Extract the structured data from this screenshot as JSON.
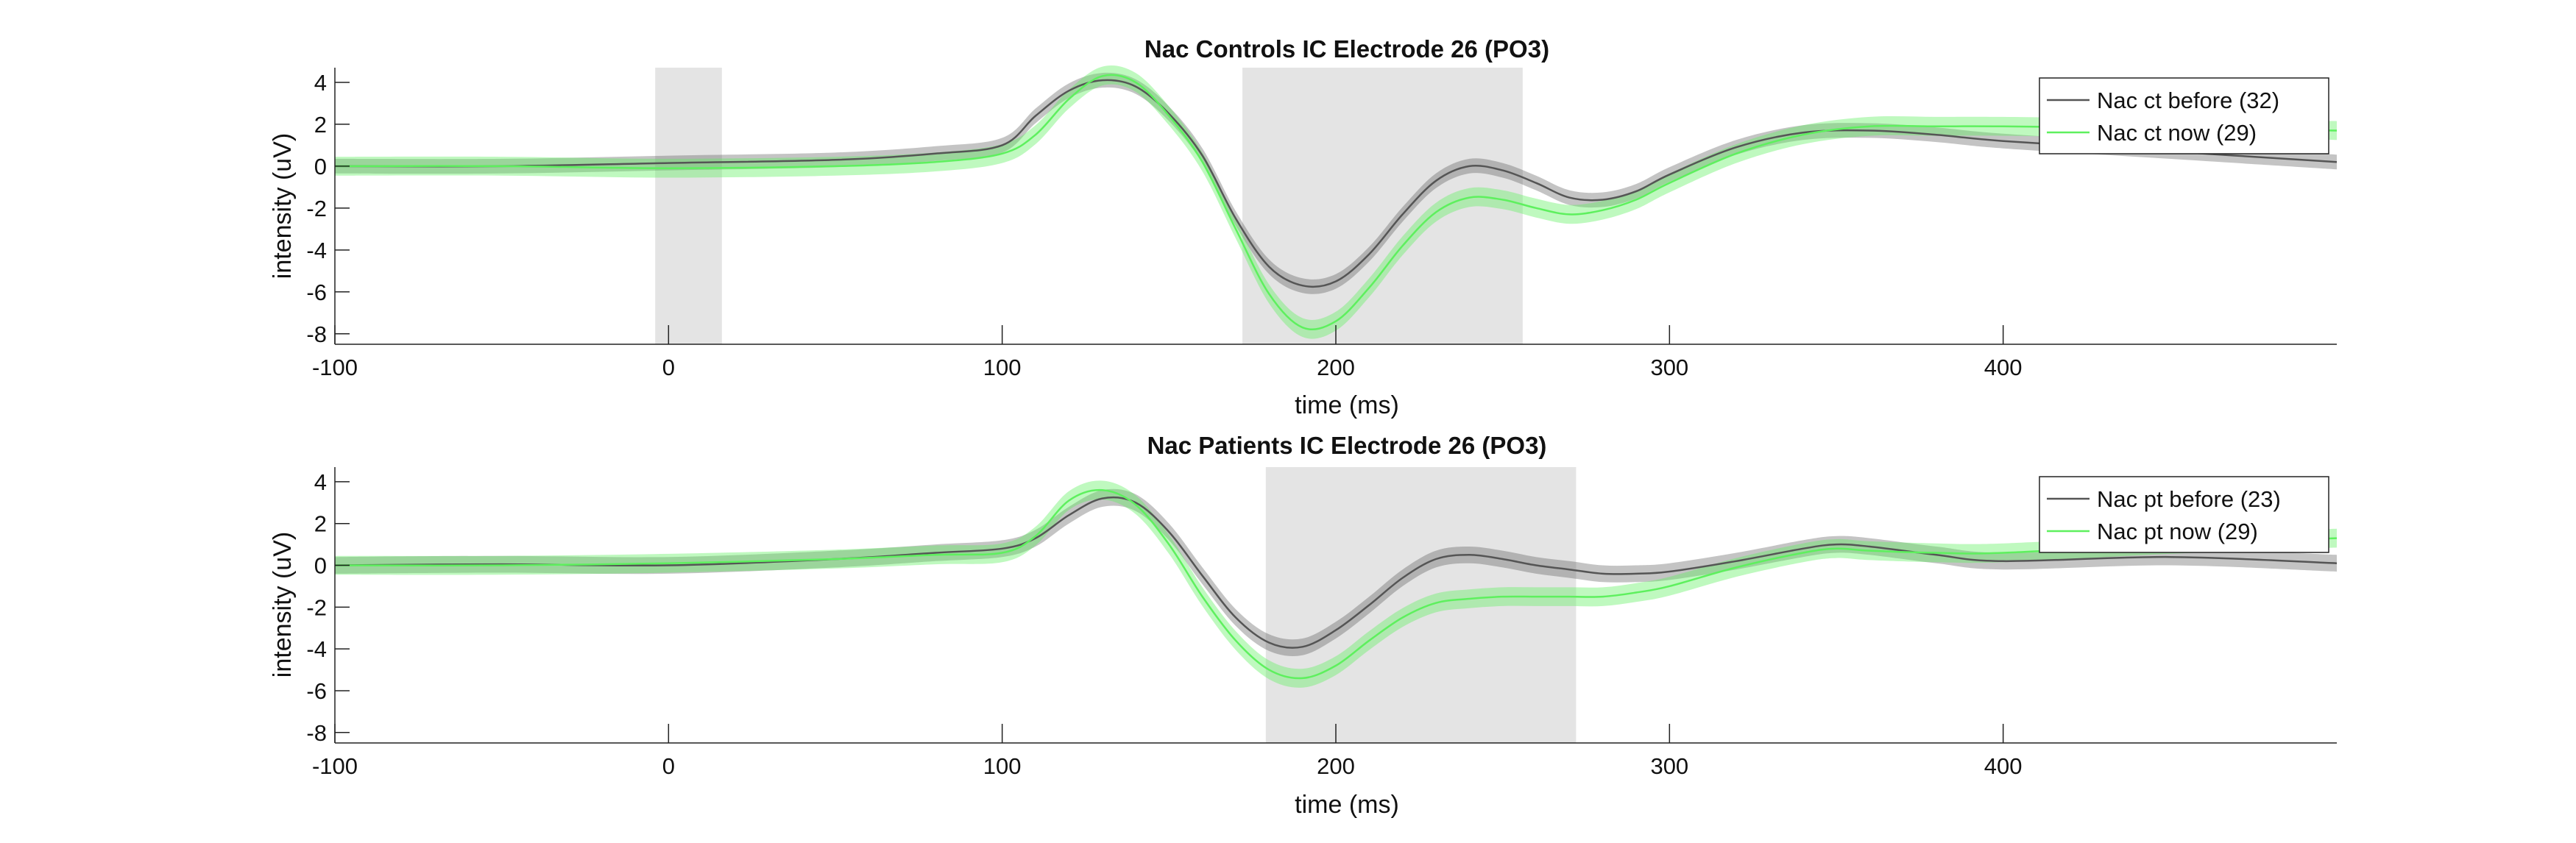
{
  "colors": {
    "before": "#555555",
    "now": "#5ef05e",
    "shade": "#e4e4e4"
  },
  "chart_data": [
    {
      "type": "line",
      "title": "Nac Controls IC Electrode 26 (PO3)",
      "xlabel": "time (ms)",
      "ylabel": "intensity (uV)",
      "xlim": [
        -100,
        500
      ],
      "ylim": [
        -8.5,
        4.7
      ],
      "xticks": [
        -100,
        0,
        100,
        200,
        300,
        400
      ],
      "yticks": [
        -8,
        -6,
        -4,
        -2,
        0,
        2,
        4
      ],
      "shaded_regions": [
        [
          -4,
          16
        ],
        [
          172,
          256
        ]
      ],
      "legend_position": "top-right",
      "series": [
        {
          "name": "Nac ct before (32)",
          "color": "#555555",
          "error": 0.35,
          "x": [
            -100,
            -50,
            0,
            50,
            80,
            100,
            110,
            120,
            130,
            140,
            150,
            160,
            170,
            180,
            190,
            200,
            210,
            220,
            230,
            240,
            250,
            260,
            270,
            280,
            290,
            300,
            320,
            340,
            360,
            380,
            400,
            450,
            500
          ],
          "y": [
            0.0,
            0.0,
            0.15,
            0.3,
            0.6,
            1.0,
            2.4,
            3.6,
            4.1,
            3.8,
            2.5,
            0.5,
            -2.5,
            -4.8,
            -5.7,
            -5.5,
            -4.2,
            -2.3,
            -0.7,
            0.0,
            -0.2,
            -0.8,
            -1.5,
            -1.6,
            -1.2,
            -0.4,
            0.9,
            1.6,
            1.7,
            1.5,
            1.2,
            0.7,
            0.2
          ]
        },
        {
          "name": "Nac ct now (29)",
          "color": "#5ef05e",
          "error": 0.45,
          "x": [
            -100,
            -50,
            0,
            50,
            80,
            100,
            110,
            120,
            130,
            140,
            150,
            160,
            170,
            180,
            190,
            200,
            210,
            220,
            230,
            240,
            250,
            260,
            270,
            280,
            290,
            300,
            320,
            340,
            360,
            380,
            400,
            450,
            500
          ],
          "y": [
            0.0,
            0.0,
            -0.1,
            0.0,
            0.2,
            0.6,
            1.5,
            3.2,
            4.3,
            4.0,
            2.4,
            0.2,
            -3.0,
            -6.1,
            -7.7,
            -7.4,
            -5.8,
            -3.8,
            -2.2,
            -1.5,
            -1.6,
            -2.0,
            -2.3,
            -2.1,
            -1.6,
            -0.8,
            0.6,
            1.5,
            1.9,
            1.9,
            1.9,
            1.8,
            1.7
          ]
        }
      ]
    },
    {
      "type": "line",
      "title": "Nac Patients IC Electrode 26 (PO3)",
      "xlabel": "time (ms)",
      "ylabel": "intensity (uV)",
      "xlim": [
        -100,
        500
      ],
      "ylim": [
        -8.5,
        4.7
      ],
      "xticks": [
        -100,
        0,
        100,
        200,
        300,
        400
      ],
      "yticks": [
        -8,
        -6,
        -4,
        -2,
        0,
        2,
        4
      ],
      "shaded_regions": [
        [
          179,
          272
        ]
      ],
      "legend_position": "top-right",
      "series": [
        {
          "name": "Nac pt before (23)",
          "color": "#555555",
          "error": 0.4,
          "x": [
            -100,
            -50,
            0,
            50,
            80,
            100,
            110,
            120,
            130,
            140,
            150,
            160,
            170,
            180,
            190,
            200,
            210,
            220,
            230,
            240,
            250,
            260,
            270,
            280,
            290,
            300,
            320,
            340,
            350,
            360,
            380,
            400,
            450,
            500
          ],
          "y": [
            0.0,
            0.05,
            0.0,
            0.3,
            0.6,
            0.8,
            1.3,
            2.4,
            3.2,
            3.0,
            1.6,
            -0.5,
            -2.5,
            -3.7,
            -3.9,
            -3.1,
            -1.9,
            -0.6,
            0.3,
            0.5,
            0.3,
            0.0,
            -0.2,
            -0.4,
            -0.4,
            -0.3,
            0.2,
            0.8,
            1.0,
            0.9,
            0.5,
            0.2,
            0.4,
            0.1
          ]
        },
        {
          "name": "Nac pt now (29)",
          "color": "#5ef05e",
          "error": 0.45,
          "x": [
            -100,
            -50,
            0,
            50,
            80,
            100,
            110,
            120,
            130,
            140,
            150,
            160,
            170,
            180,
            190,
            200,
            210,
            220,
            230,
            240,
            250,
            260,
            270,
            280,
            290,
            300,
            320,
            340,
            350,
            360,
            380,
            400,
            450,
            500
          ],
          "y": [
            0.0,
            0.0,
            0.1,
            0.3,
            0.5,
            0.6,
            1.4,
            3.1,
            3.6,
            2.9,
            1.0,
            -1.5,
            -3.6,
            -5.0,
            -5.4,
            -4.8,
            -3.6,
            -2.5,
            -1.8,
            -1.6,
            -1.5,
            -1.5,
            -1.5,
            -1.5,
            -1.3,
            -1.0,
            -0.1,
            0.6,
            0.8,
            0.7,
            0.6,
            0.6,
            1.0,
            1.3
          ]
        }
      ]
    }
  ]
}
